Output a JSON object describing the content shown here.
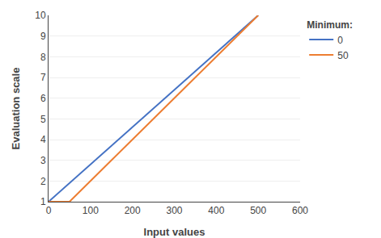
{
  "chart_data": {
    "type": "line",
    "xlabel": "Input values",
    "ylabel": "Evaluation scale",
    "series": [
      {
        "name": "0",
        "color": "#4472C4",
        "x": [
          0,
          500
        ],
        "values": [
          1,
          10
        ]
      },
      {
        "name": "50",
        "color": "#ED7D31",
        "x": [
          0,
          50,
          500
        ],
        "values": [
          1,
          1,
          10
        ]
      }
    ],
    "xlim": [
      0,
      600
    ],
    "ylim": [
      1,
      10
    ],
    "xticks": [
      0,
      100,
      200,
      300,
      400,
      500,
      600
    ],
    "yticks": [
      1,
      2,
      3,
      4,
      5,
      6,
      7,
      8,
      9,
      10
    ],
    "grid": "y",
    "legend": "right",
    "legend_title": "Minimum:"
  }
}
